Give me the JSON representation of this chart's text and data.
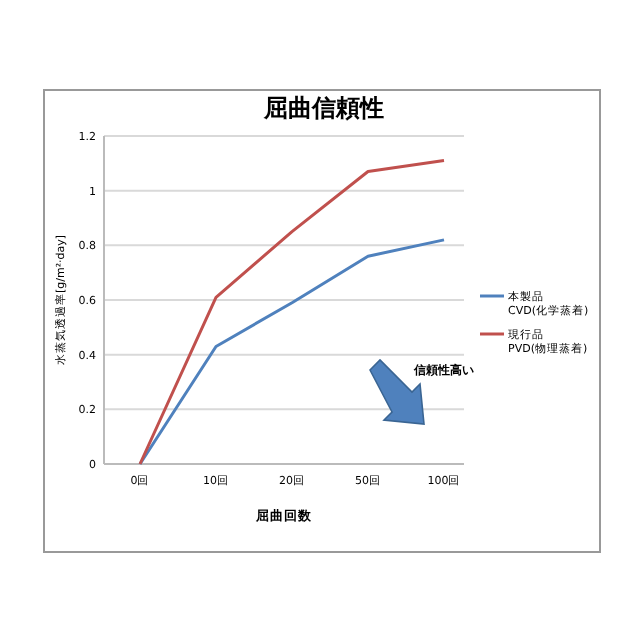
{
  "chart_data": {
    "type": "line",
    "title": "屈曲信頼性",
    "xlabel": "屈曲回数",
    "ylabel": "水蒸気透過率[g/m²·day]",
    "categories": [
      "0回",
      "10回",
      "20回",
      "50回",
      "100回"
    ],
    "series": [
      {
        "name": "本製品 CVD(化学蒸着)",
        "color": "#4f81bd",
        "values": [
          0,
          0.43,
          0.59,
          0.76,
          0.82
        ]
      },
      {
        "name": "現行品 PVD(物理蒸着)",
        "color": "#c0504d",
        "values": [
          0,
          0.61,
          0.85,
          1.07,
          1.11
        ]
      }
    ],
    "ylim": [
      0,
      1.2
    ],
    "yticks": [
      0,
      0.2,
      0.4,
      0.6,
      0.8,
      1,
      1.2
    ],
    "grid": "y",
    "legend": "right",
    "marker": "none",
    "line_style": "solid",
    "annotations": [
      "信頼性高い"
    ]
  }
}
